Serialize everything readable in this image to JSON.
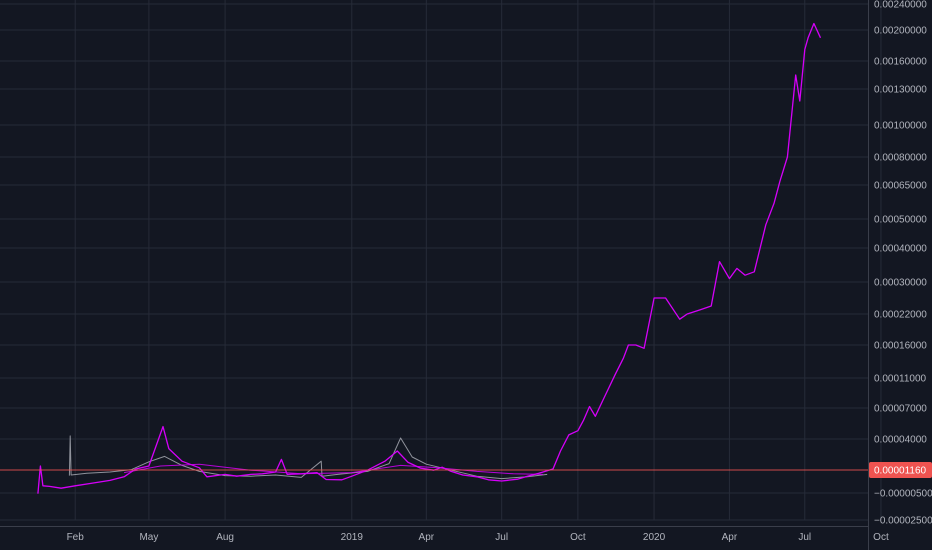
{
  "colors": {
    "background": "#131722",
    "grid": "#262b38",
    "axis_text": "#b2b5be",
    "axis_border": "#3a3e4a",
    "primary_line": "#d500f9",
    "secondary_line": "#b0b3bc",
    "last_price_line": "#ef5350",
    "price_tag_bg": "#ef5350"
  },
  "chart_data": {
    "type": "line",
    "title": "",
    "xlabel": "",
    "ylabel": "",
    "grid": true,
    "legend": "none",
    "x_axis": {
      "type": "date",
      "range": [
        "2017-12-01",
        "2020-11-30"
      ]
    },
    "y_axis": {
      "position": "right",
      "scale": "custom-compressed",
      "range": [
        -2.5e-05,
        0.0024
      ]
    },
    "x_ticks": [
      {
        "label": "Feb",
        "date": "2018-02-01"
      },
      {
        "label": "May",
        "date": "2018-05-01"
      },
      {
        "label": "Aug",
        "date": "2018-08-01"
      },
      {
        "label": "2019",
        "date": "2019-01-01"
      },
      {
        "label": "Apr",
        "date": "2019-04-01"
      },
      {
        "label": "Jul",
        "date": "2019-07-01"
      },
      {
        "label": "Oct",
        "date": "2019-10-01"
      },
      {
        "label": "2020",
        "date": "2020-01-01"
      },
      {
        "label": "Apr",
        "date": "2020-04-01"
      },
      {
        "label": "Jul",
        "date": "2020-07-01"
      },
      {
        "label": "Oct",
        "date": "2020-10-01"
      }
    ],
    "y_ticks": [
      {
        "label": "0.00240000",
        "value": 0.0024
      },
      {
        "label": "0.00200000",
        "value": 0.002
      },
      {
        "label": "0.00160000",
        "value": 0.0016
      },
      {
        "label": "0.00130000",
        "value": 0.0013
      },
      {
        "label": "0.00100000",
        "value": 0.001
      },
      {
        "label": "0.00080000",
        "value": 0.0008
      },
      {
        "label": "0.00065000",
        "value": 0.00065
      },
      {
        "label": "0.00050000",
        "value": 0.0005
      },
      {
        "label": "0.00040000",
        "value": 0.0004
      },
      {
        "label": "0.00030000",
        "value": 0.0003
      },
      {
        "label": "0.00022000",
        "value": 0.00022
      },
      {
        "label": "0.00016000",
        "value": 0.00016
      },
      {
        "label": "0.00011000",
        "value": 0.00011
      },
      {
        "label": "0.00007000",
        "value": 7e-05
      },
      {
        "label": "0.00004000",
        "value": 4e-05
      },
      {
        "label": "−0.00000500",
        "value": -5e-06
      },
      {
        "label": "−0.00002500",
        "value": -2.5e-05
      }
    ],
    "last_price": {
      "label": "0.00001160",
      "value": 1.16e-05
    },
    "series": [
      {
        "points": [
          [
            "2017-12-18",
            -5.5e-06
          ],
          [
            "2017-12-21",
            1.75e-05
          ],
          [
            "2017-12-24",
            1e-06
          ],
          [
            "2018-01-01",
            5e-07
          ],
          [
            "2018-01-15",
            -1e-06
          ],
          [
            "2018-02-01",
            1e-06
          ],
          [
            "2018-02-20",
            3e-06
          ],
          [
            "2018-03-15",
            5.5e-06
          ],
          [
            "2018-04-01",
            8.5e-06
          ],
          [
            "2018-04-15",
            1.5e-05
          ],
          [
            "2018-05-01",
            1.75e-05
          ],
          [
            "2018-05-18",
            5.2e-05
          ],
          [
            "2018-05-25",
            3.2e-05
          ],
          [
            "2018-06-10",
            2.15e-05
          ],
          [
            "2018-07-01",
            1.6e-05
          ],
          [
            "2018-07-10",
            8.5e-06
          ],
          [
            "2018-08-01",
            1.05e-05
          ],
          [
            "2018-08-15",
            9e-06
          ],
          [
            "2018-09-01",
            1.05e-05
          ],
          [
            "2018-09-15",
            1.1e-05
          ],
          [
            "2018-10-01",
            1.25e-05
          ],
          [
            "2018-10-08",
            2.3e-05
          ],
          [
            "2018-10-15",
            1.05e-05
          ],
          [
            "2018-11-01",
            1.1e-05
          ],
          [
            "2018-11-20",
            1.2e-05
          ],
          [
            "2018-12-01",
            6.25e-06
          ],
          [
            "2018-12-20",
            6e-06
          ],
          [
            "2019-01-01",
            9e-06
          ],
          [
            "2019-01-20",
            1.4e-05
          ],
          [
            "2019-02-10",
            2.15e-05
          ],
          [
            "2019-02-25",
            3e-05
          ],
          [
            "2019-03-10",
            2.05e-05
          ],
          [
            "2019-03-25",
            1.575e-05
          ],
          [
            "2019-04-10",
            1.4e-05
          ],
          [
            "2019-04-20",
            1.65e-05
          ],
          [
            "2019-05-01",
            1.3e-05
          ],
          [
            "2019-05-15",
            1e-05
          ],
          [
            "2019-06-01",
            8.5e-06
          ],
          [
            "2019-06-15",
            6e-06
          ],
          [
            "2019-07-01",
            5e-06
          ],
          [
            "2019-07-20",
            6.5e-06
          ],
          [
            "2019-08-01",
            9e-06
          ],
          [
            "2019-08-15",
            1.15e-05
          ],
          [
            "2019-09-01",
            1.5e-05
          ],
          [
            "2019-09-10",
            3e-05
          ],
          [
            "2019-09-20",
            4.4e-05
          ],
          [
            "2019-10-01",
            4.8e-05
          ],
          [
            "2019-10-08",
            5.85e-05
          ],
          [
            "2019-10-15",
            7.2e-05
          ],
          [
            "2019-10-22",
            6.2e-05
          ],
          [
            "2019-11-01",
            8.2e-05
          ],
          [
            "2019-11-15",
            0.000115
          ],
          [
            "2019-11-25",
            0.00014
          ],
          [
            "2019-12-01",
            0.00016
          ],
          [
            "2019-12-10",
            0.00016
          ],
          [
            "2019-12-20",
            0.000155
          ],
          [
            "2020-01-01",
            0.00026
          ],
          [
            "2020-01-15",
            0.00026
          ],
          [
            "2020-02-01",
            0.00021
          ],
          [
            "2020-02-10",
            0.00022
          ],
          [
            "2020-02-25",
            0.00023
          ],
          [
            "2020-03-10",
            0.00024
          ],
          [
            "2020-03-20",
            0.00036
          ],
          [
            "2020-04-01",
            0.00031
          ],
          [
            "2020-04-10",
            0.00034
          ],
          [
            "2020-04-20",
            0.00032
          ],
          [
            "2020-05-01",
            0.00033
          ],
          [
            "2020-05-15",
            0.00048
          ],
          [
            "2020-05-25",
            0.00057
          ],
          [
            "2020-06-01",
            0.00067
          ],
          [
            "2020-06-10",
            0.0008
          ],
          [
            "2020-06-20",
            0.00145
          ],
          [
            "2020-06-25",
            0.0012
          ],
          [
            "2020-07-01",
            0.00175
          ],
          [
            "2020-07-05",
            0.0019
          ],
          [
            "2020-07-12",
            0.0021
          ],
          [
            "2020-07-20",
            0.0019
          ]
        ]
      },
      {
        "points": [
          [
            "2018-01-25",
            9.5e-06
          ],
          [
            "2018-01-26",
            4.3e-05
          ],
          [
            "2018-01-27",
            1e-05
          ],
          [
            "2018-02-15",
            1.15e-05
          ],
          [
            "2018-03-15",
            1.25e-05
          ],
          [
            "2018-04-10",
            1.45e-05
          ],
          [
            "2018-05-01",
            2.1e-05
          ],
          [
            "2018-05-20",
            2.55e-05
          ],
          [
            "2018-06-10",
            1.8e-05
          ],
          [
            "2018-07-01",
            1.3e-05
          ],
          [
            "2018-08-01",
            9.5e-06
          ],
          [
            "2018-09-01",
            9e-06
          ],
          [
            "2018-10-01",
            1e-05
          ],
          [
            "2018-11-01",
            8e-06
          ],
          [
            "2018-11-25",
            2.15e-05
          ],
          [
            "2018-11-26",
            9e-06
          ],
          [
            "2018-12-15",
            1.05e-05
          ],
          [
            "2019-01-20",
            1.3e-05
          ],
          [
            "2019-02-15",
            1.95e-05
          ],
          [
            "2019-03-01",
            4.1e-05
          ],
          [
            "2019-03-15",
            2.5e-05
          ],
          [
            "2019-04-01",
            1.9e-05
          ],
          [
            "2019-05-01",
            1.4e-05
          ],
          [
            "2019-06-01",
            9e-06
          ],
          [
            "2019-07-01",
            7e-06
          ],
          [
            "2019-08-01",
            8.5e-06
          ],
          [
            "2019-08-25",
            1.05e-05
          ]
        ]
      },
      {
        "points": [
          [
            "2018-04-01",
            1.2e-05
          ],
          [
            "2018-05-15",
            1.75e-05
          ],
          [
            "2018-07-01",
            1.9e-05
          ],
          [
            "2018-09-01",
            1.4e-05
          ],
          [
            "2018-11-01",
            1.1e-05
          ],
          [
            "2019-01-01",
            1.2e-05
          ],
          [
            "2019-03-01",
            1.8e-05
          ],
          [
            "2019-04-15",
            1.6e-05
          ],
          [
            "2019-06-01",
            1.3e-05
          ],
          [
            "2019-07-15",
            1.1e-05
          ],
          [
            "2019-08-20",
            1.05e-05
          ]
        ]
      }
    ]
  }
}
